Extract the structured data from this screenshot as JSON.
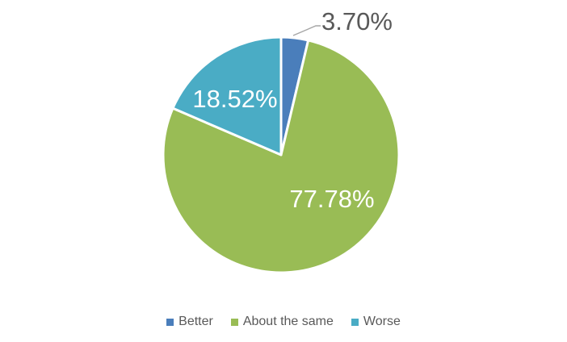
{
  "chart_data": {
    "type": "pie",
    "title": "",
    "labels": [
      "Better",
      "About the same",
      "Worse"
    ],
    "values": [
      3.7,
      77.78,
      18.52
    ],
    "data_labels": [
      "3.70%",
      "77.78%",
      "18.52%"
    ],
    "colors": [
      "#4A7EBB",
      "#99BC55",
      "#4AACC5"
    ],
    "data_label_colors": [
      "#595959",
      "#FFFFFF",
      "#FFFFFF"
    ],
    "start_angle_deg": 0,
    "direction": "clockwise",
    "slice_border_color": "#FFFFFF",
    "leader_line_color": "#A6A6A6",
    "background": "#FFFFFF",
    "legend": {
      "position": "bottom",
      "text_color": "#595959",
      "items": [
        {
          "label": "Better",
          "color": "#4A7EBB"
        },
        {
          "label": "About the same",
          "color": "#99BC55"
        },
        {
          "label": "Worse",
          "color": "#4AACC5"
        }
      ]
    }
  }
}
